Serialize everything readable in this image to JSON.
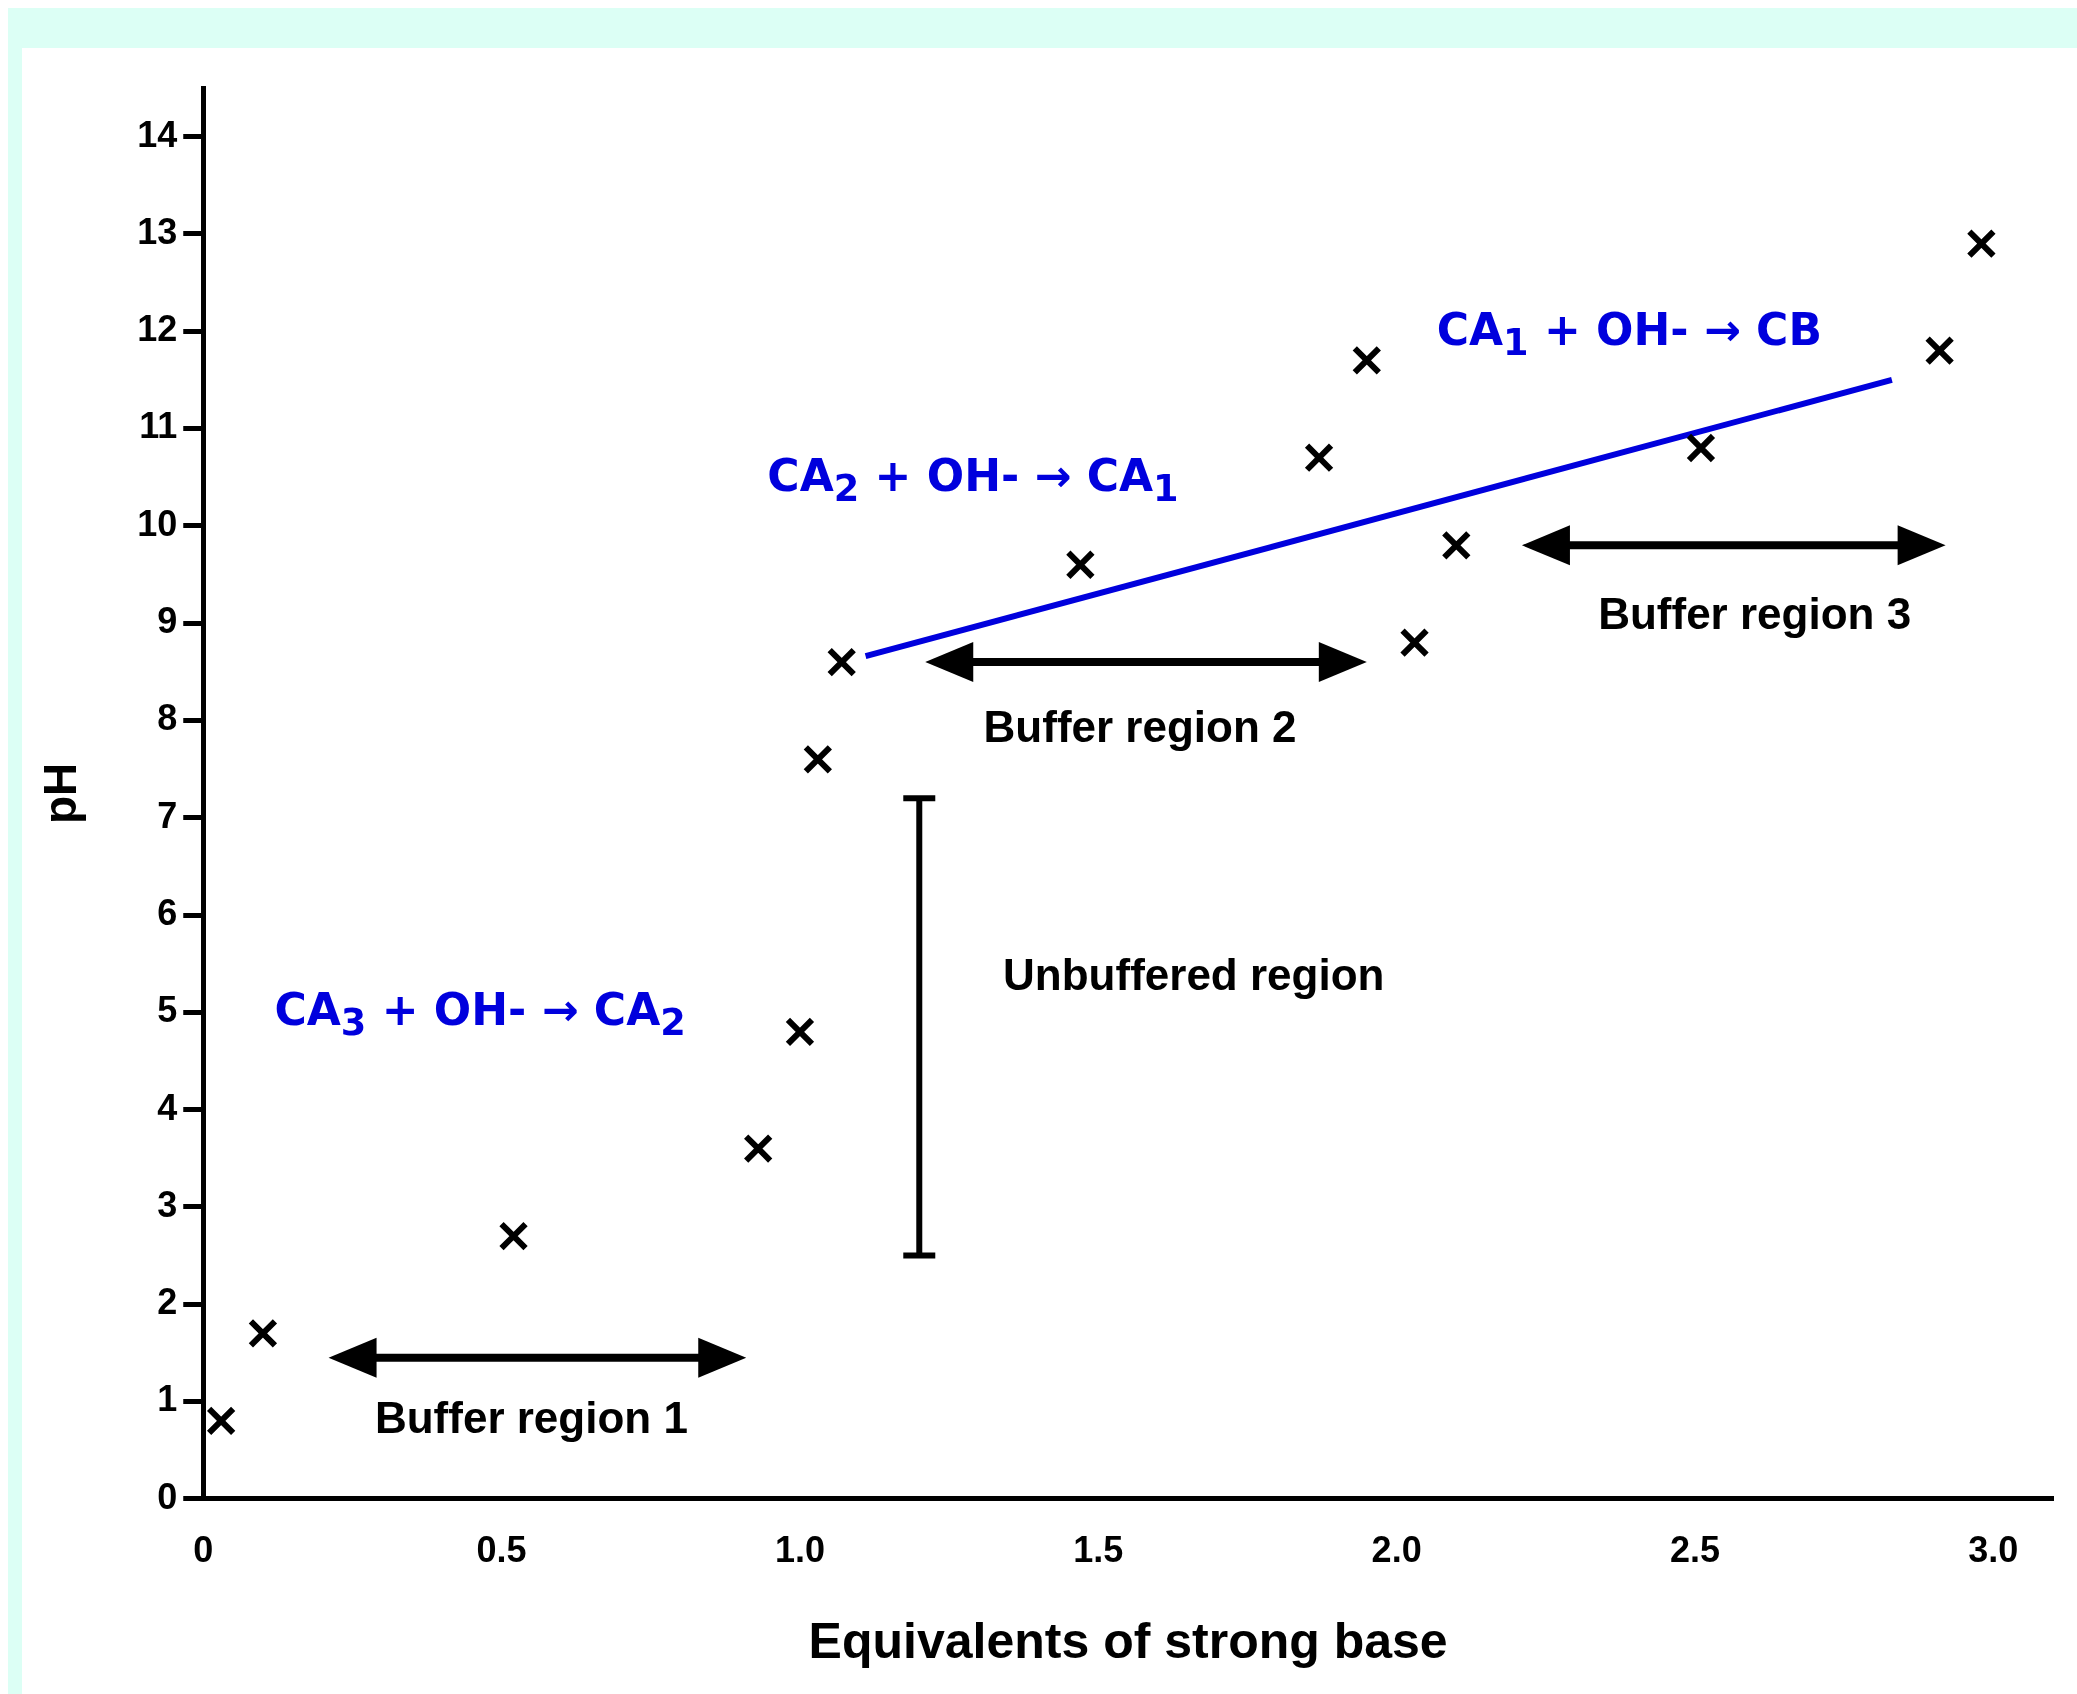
{
  "chart_data": {
    "type": "scatter",
    "xlabel": "Equivalents of strong base",
    "ylabel": "pH",
    "series": [
      {
        "type": "scatter",
        "color": "#000000",
        "marker": "cross",
        "x": [
          0.03,
          0.1,
          0.52,
          0.93,
          1.0,
          1.03,
          1.07,
          1.47,
          1.87,
          1.95,
          2.03,
          2.1,
          2.51,
          2.91,
          2.98
        ],
        "values": [
          0.8,
          1.7,
          2.7,
          3.6,
          4.8,
          7.6,
          8.6,
          9.6,
          10.7,
          11.7,
          8.8,
          9.8,
          10.8,
          11.8,
          12.9
        ]
      },
      {
        "type": "line",
        "color": "#0000dd",
        "marker": "none",
        "x": [
          1.11,
          2.83
        ],
        "values": [
          8.66,
          11.5
        ]
      }
    ],
    "annotations": [
      "CA$_{3}$ + OH- → CA$_{2}$",
      "CA$_{2}$ + OH- → CA$_{1}$",
      "CA$_{1}$ + OH- → CB",
      "Buffer region 1",
      "Buffer region 2",
      "Buffer region 3",
      "Unbuffered region"
    ],
    "xlim": [
      0,
      3.1
    ],
    "xticks": [
      0,
      0.5,
      {
        "value": 1,
        "label": "1.0"
      },
      1.5,
      {
        "value": 2,
        "label": "2.0"
      },
      2.5,
      {
        "value": 3,
        "label": "3.0"
      }
    ],
    "ylim": [
      0,
      14.5
    ],
    "yticks": [
      0,
      1,
      2,
      3,
      4,
      5,
      6,
      7,
      8,
      9,
      10,
      11,
      12,
      13,
      14
    ],
    "grid": false,
    "legend": false
  }
}
